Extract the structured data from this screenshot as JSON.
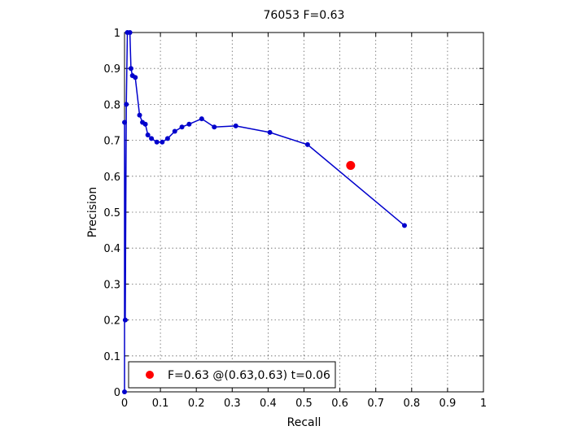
{
  "chart_data": {
    "type": "line",
    "title": "76053 F=0.63",
    "xlabel": "Recall",
    "ylabel": "Precision",
    "xlim": [
      0,
      1
    ],
    "ylim": [
      0,
      1
    ],
    "grid": true,
    "xticks": [
      "0",
      "0.1",
      "0.2",
      "0.3",
      "0.4",
      "0.5",
      "0.6",
      "0.7",
      "0.8",
      "0.9",
      "1"
    ],
    "yticks": [
      "0",
      "0.1",
      "0.2",
      "0.3",
      "0.4",
      "0.5",
      "0.6",
      "0.7",
      "0.8",
      "0.9",
      "1"
    ],
    "legend_position": "bottom-left",
    "series": [
      {
        "color": "#0000cc",
        "points": [
          [
            0.0,
            0.0
          ],
          [
            0.0,
            0.75
          ],
          [
            0.002,
            0.2
          ],
          [
            0.005,
            0.8
          ],
          [
            0.008,
            1.0
          ],
          [
            0.015,
            1.0
          ],
          [
            0.018,
            0.9
          ],
          [
            0.022,
            0.88
          ],
          [
            0.03,
            0.875
          ],
          [
            0.042,
            0.77
          ],
          [
            0.05,
            0.75
          ],
          [
            0.058,
            0.745
          ],
          [
            0.065,
            0.715
          ],
          [
            0.075,
            0.705
          ],
          [
            0.09,
            0.695
          ],
          [
            0.105,
            0.695
          ],
          [
            0.12,
            0.705
          ],
          [
            0.14,
            0.725
          ],
          [
            0.16,
            0.737
          ],
          [
            0.18,
            0.745
          ],
          [
            0.215,
            0.76
          ],
          [
            0.25,
            0.737
          ],
          [
            0.31,
            0.74
          ],
          [
            0.405,
            0.722
          ],
          [
            0.51,
            0.688
          ],
          [
            0.78,
            0.463
          ]
        ]
      }
    ],
    "best_point": {
      "recall": 0.63,
      "precision": 0.63,
      "color": "#ff0000"
    },
    "legend_label": "F=0.63 @(0.63,0.63) t=0.06"
  }
}
